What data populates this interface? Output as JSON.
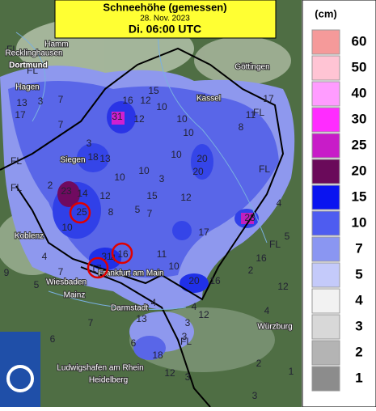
{
  "header": {
    "title": "Schneehöhe (gemessen)",
    "date": "28. Nov. 2023",
    "time": "Di. 06:00 UTC"
  },
  "legend": {
    "unit": "(cm)",
    "items": [
      {
        "label": "60",
        "color": "#f59a9a"
      },
      {
        "label": "50",
        "color": "#ffc4d4"
      },
      {
        "label": "40",
        "color": "#ff9cff"
      },
      {
        "label": "30",
        "color": "#ff2cff"
      },
      {
        "label": "25",
        "color": "#c81cc8"
      },
      {
        "label": "20",
        "color": "#6a0a5a"
      },
      {
        "label": "15",
        "color": "#0a14f0"
      },
      {
        "label": "10",
        "color": "#4e5cf0"
      },
      {
        "label": "7",
        "color": "#8a96f2"
      },
      {
        "label": "5",
        "color": "#c4cafa"
      },
      {
        "label": "4",
        "color": "#f2f2f2"
      },
      {
        "label": "3",
        "color": "#d8d8d8"
      },
      {
        "label": "2",
        "color": "#b4b4b4"
      },
      {
        "label": "1",
        "color": "#8c8c8c"
      }
    ]
  },
  "cities": [
    "Hamm",
    "Recklinghausen",
    "Dortmund",
    "Göttingen",
    "Hagen",
    "Kassel",
    "Siegen",
    "Koblenz",
    "Frankfurt am Main",
    "Wiesbaden",
    "Mainz",
    "Darmstadt",
    "Würzburg",
    "Ludwigshafen am Rhein",
    "Heidelberg"
  ],
  "stations": [
    "FL",
    "FL",
    "13",
    "3",
    "7",
    "17",
    "7",
    "16",
    "12",
    "31",
    "12",
    "15",
    "10",
    "10",
    "11",
    "17",
    "8",
    "11",
    "10",
    "FL",
    "10",
    "20",
    "18",
    "13",
    "3",
    "23",
    "14",
    "2",
    "12",
    "25",
    "10",
    "10",
    "15",
    "12",
    "20",
    "17",
    "28",
    "8",
    "5",
    "16",
    "31",
    "17",
    "20",
    "16",
    "10",
    "12",
    "6",
    "18",
    "12",
    "3",
    "3",
    "FL",
    "FL",
    "FL",
    "2",
    "9",
    "4",
    "7",
    "5",
    "11",
    "12",
    "16",
    "5",
    "4",
    "4",
    "3",
    "4",
    "13",
    "6",
    "7",
    "10",
    "3",
    "4",
    "7",
    "FL",
    "FL",
    "4",
    "2",
    "1",
    "3",
    "DWD"
  ]
}
